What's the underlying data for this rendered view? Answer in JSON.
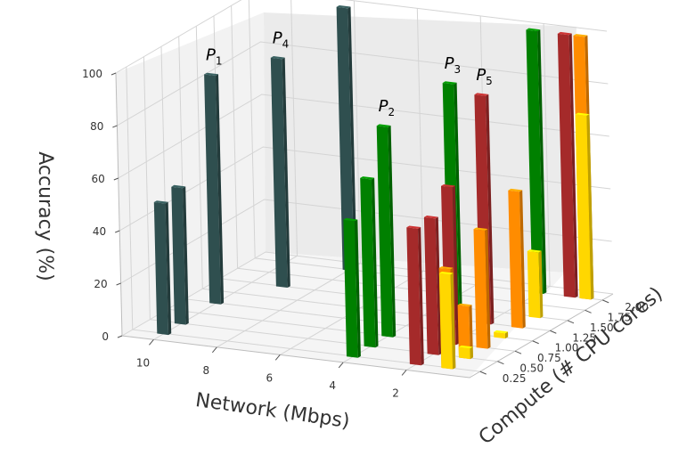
{
  "chart_data": {
    "type": "bar3d",
    "title": "",
    "xlabel": "Network (Mbps)",
    "ylabel": "Compute (# CPU cores)",
    "zlabel": "Accuracy (%)",
    "x_ticks": [
      "10",
      "8",
      "6",
      "4",
      "2"
    ],
    "y_ticks": [
      "0.25",
      "0.50",
      "0.75",
      "1.00",
      "1.25",
      "1.50",
      "1.75",
      "2.00"
    ],
    "z_ticks": [
      "0",
      "20",
      "40",
      "60",
      "80",
      "100"
    ],
    "zlim": [
      0,
      100
    ],
    "grid": true,
    "colors": {
      "P1": "#2f4f4f",
      "P2": "#008000",
      "P3": "#008000",
      "P4": "#2f4f4f",
      "P5": "#a52a2a",
      "orange": "#ff8c00",
      "yellow": "#ffd700"
    },
    "point_labels": [
      {
        "name": "P",
        "sub": "1"
      },
      {
        "name": "P",
        "sub": "4"
      },
      {
        "name": "P",
        "sub": "3"
      },
      {
        "name": "P",
        "sub": "5"
      },
      {
        "name": "P",
        "sub": "2"
      }
    ],
    "series": [
      {
        "color_key": "P1",
        "bars": [
          {
            "network": 10,
            "compute": 0.25,
            "accuracy": 50
          },
          {
            "network": 10,
            "compute": 0.5,
            "accuracy": 52
          },
          {
            "network": 10,
            "compute": 1.0,
            "accuracy": 87
          },
          {
            "network": 9,
            "compute": 1.5,
            "accuracy": 87
          },
          {
            "network": 8,
            "compute": 2.0,
            "accuracy": 100
          }
        ]
      },
      {
        "color_key": "P2",
        "bars": [
          {
            "network": 4,
            "compute": 0.25,
            "accuracy": 52
          },
          {
            "network": 4,
            "compute": 0.5,
            "accuracy": 64
          },
          {
            "network": 4,
            "compute": 0.75,
            "accuracy": 80
          },
          {
            "network": 3,
            "compute": 1.25,
            "accuracy": 90
          },
          {
            "network": 2,
            "compute": 2.0,
            "accuracy": 100
          }
        ]
      },
      {
        "color_key": "P5",
        "bars": [
          {
            "network": 2,
            "compute": 0.25,
            "accuracy": 52
          },
          {
            "network": 2,
            "compute": 0.5,
            "accuracy": 52
          },
          {
            "network": 2,
            "compute": 0.75,
            "accuracy": 60
          },
          {
            "network": 2,
            "compute": 1.25,
            "accuracy": 87
          },
          {
            "network": 1,
            "compute": 2.0,
            "accuracy": 100
          }
        ]
      },
      {
        "color_key": "orange",
        "bars": [
          {
            "network": 1,
            "compute": 0.25,
            "accuracy": 38
          },
          {
            "network": 1,
            "compute": 0.5,
            "accuracy": 20
          },
          {
            "network": 1,
            "compute": 0.75,
            "accuracy": 45
          },
          {
            "network": 1,
            "compute": 1.25,
            "accuracy": 52
          },
          {
            "network": 0.5,
            "compute": 2.0,
            "accuracy": 100
          }
        ]
      },
      {
        "color_key": "yellow",
        "bars": [
          {
            "network": 1,
            "compute": 0.25,
            "accuracy": 36
          },
          {
            "network": 1,
            "compute": 0.5,
            "accuracy": 4
          },
          {
            "network": 1,
            "compute": 1.0,
            "accuracy": 2
          },
          {
            "network": 1,
            "compute": 1.5,
            "accuracy": 25
          },
          {
            "network": 0.5,
            "compute": 2.0,
            "accuracy": 70
          }
        ]
      }
    ]
  }
}
